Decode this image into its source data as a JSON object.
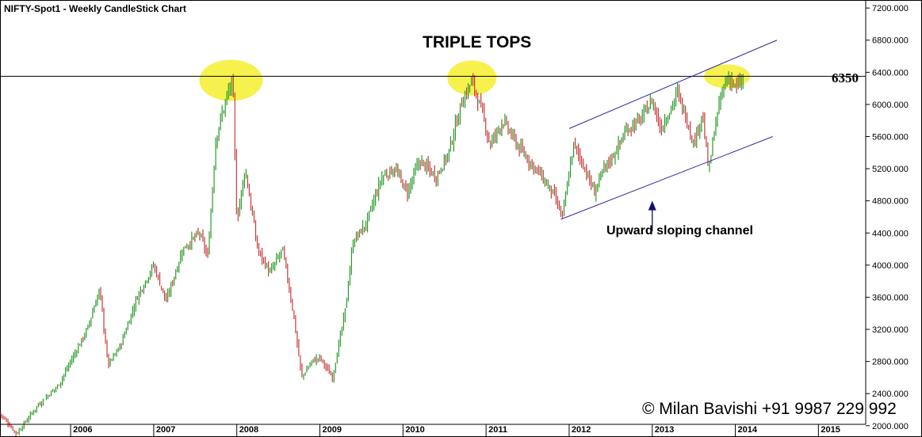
{
  "header": {
    "title": "NIFTY-Spot1 - Weekly CandleStick Chart"
  },
  "chart_data": {
    "type": "candlestick",
    "title": "TRIPLE TOPS",
    "timeframe": "Weekly",
    "grid": false,
    "x_ticks": [
      "2006",
      "2007",
      "2008",
      "2009",
      "2010",
      "2011",
      "2012",
      "2013",
      "2014",
      "2015"
    ],
    "y_ticks": [
      "7200.000",
      "6800.000",
      "6400.000",
      "6000.000",
      "5600.000",
      "5200.000",
      "4800.000",
      "4400.000",
      "4000.000",
      "3600.000",
      "3200.000",
      "2800.000",
      "2400.000",
      "2000.000"
    ],
    "ylim": [
      1860,
      7300
    ],
    "xlim": [
      2005.15,
      2015.55
    ],
    "up_color": "#2a9a2a",
    "down_color": "#c93a3a",
    "resistance": {
      "value": 6350,
      "label": "6350"
    },
    "peaks": [
      {
        "x": 2007.93,
        "y": 6300
      },
      {
        "x": 2010.83,
        "y": 6330
      },
      {
        "x": 2013.9,
        "y": 6350
      }
    ],
    "channel": {
      "upper": [
        [
          2012.0,
          5700
        ],
        [
          2014.5,
          6800
        ]
      ],
      "lower": [
        [
          2011.9,
          4570
        ],
        [
          2014.45,
          5600
        ]
      ]
    },
    "arrow": {
      "x": 2013.0,
      "from": 4420,
      "to": 4800
    },
    "annotation": "Upward sloping channel",
    "price_path": [
      [
        2005.15,
        2150
      ],
      [
        2005.35,
        1900
      ],
      [
        2005.6,
        2250
      ],
      [
        2005.85,
        2500
      ],
      [
        2006.0,
        2800
      ],
      [
        2006.2,
        3200
      ],
      [
        2006.35,
        3700
      ],
      [
        2006.45,
        2750
      ],
      [
        2006.6,
        3000
      ],
      [
        2006.8,
        3600
      ],
      [
        2007.0,
        4000
      ],
      [
        2007.15,
        3550
      ],
      [
        2007.35,
        4200
      ],
      [
        2007.55,
        4400
      ],
      [
        2007.65,
        4100
      ],
      [
        2007.75,
        5600
      ],
      [
        2007.88,
        6100
      ],
      [
        2007.95,
        6300
      ],
      [
        2008.0,
        4550
      ],
      [
        2008.1,
        5200
      ],
      [
        2008.25,
        4200
      ],
      [
        2008.4,
        3900
      ],
      [
        2008.55,
        4200
      ],
      [
        2008.68,
        3400
      ],
      [
        2008.78,
        2600
      ],
      [
        2008.9,
        2800
      ],
      [
        2009.0,
        2850
      ],
      [
        2009.15,
        2600
      ],
      [
        2009.3,
        3400
      ],
      [
        2009.4,
        4300
      ],
      [
        2009.55,
        4500
      ],
      [
        2009.75,
        5100
      ],
      [
        2009.9,
        5200
      ],
      [
        2010.05,
        4900
      ],
      [
        2010.2,
        5300
      ],
      [
        2010.4,
        5100
      ],
      [
        2010.55,
        5400
      ],
      [
        2010.7,
        6000
      ],
      [
        2010.83,
        6300
      ],
      [
        2010.95,
        5900
      ],
      [
        2011.05,
        5500
      ],
      [
        2011.2,
        5800
      ],
      [
        2011.4,
        5450
      ],
      [
        2011.6,
        5200
      ],
      [
        2011.8,
        4900
      ],
      [
        2011.92,
        4600
      ],
      [
        2012.05,
        5500
      ],
      [
        2012.15,
        5300
      ],
      [
        2012.3,
        4900
      ],
      [
        2012.42,
        5200
      ],
      [
        2012.55,
        5400
      ],
      [
        2012.7,
        5700
      ],
      [
        2012.85,
        5800
      ],
      [
        2013.0,
        6050
      ],
      [
        2013.1,
        5700
      ],
      [
        2013.2,
        5900
      ],
      [
        2013.3,
        6150
      ],
      [
        2013.42,
        5800
      ],
      [
        2013.5,
        5500
      ],
      [
        2013.6,
        5900
      ],
      [
        2013.68,
        5150
      ],
      [
        2013.75,
        5700
      ],
      [
        2013.85,
        6200
      ],
      [
        2013.93,
        6350
      ],
      [
        2014.0,
        6200
      ],
      [
        2014.1,
        6300
      ]
    ]
  },
  "copyright": "© Milan Bavishi +91 9987 229 992"
}
